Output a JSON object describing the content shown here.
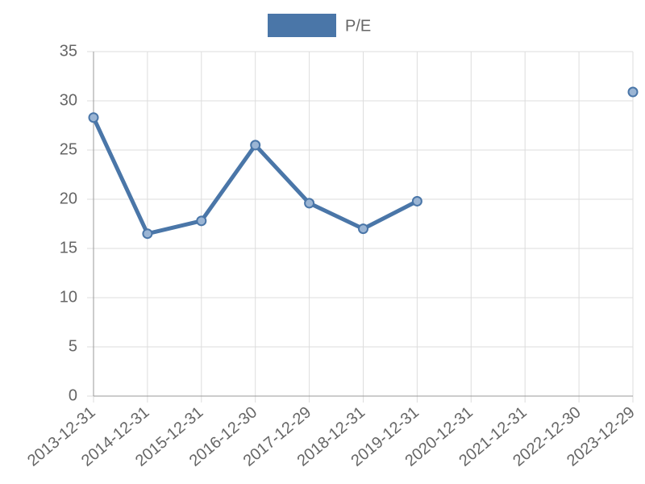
{
  "chart_data": {
    "type": "line",
    "categories": [
      "2013-12-31",
      "2014-12-31",
      "2015-12-31",
      "2016-12-30",
      "2017-12-29",
      "2018-12-31",
      "2019-12-31",
      "2020-12-31",
      "2021-12-31",
      "2022-12-30",
      "2023-12-29"
    ],
    "series": [
      {
        "name": "P/E",
        "color": "#4a76a8",
        "values": [
          28.3,
          16.5,
          17.8,
          25.5,
          19.6,
          17.0,
          19.8,
          null,
          null,
          null,
          30.9
        ]
      }
    ],
    "ylim": [
      0,
      35
    ],
    "yticks": [
      0,
      5,
      10,
      15,
      20,
      25,
      30,
      35
    ],
    "grid": true,
    "legend": "top"
  }
}
